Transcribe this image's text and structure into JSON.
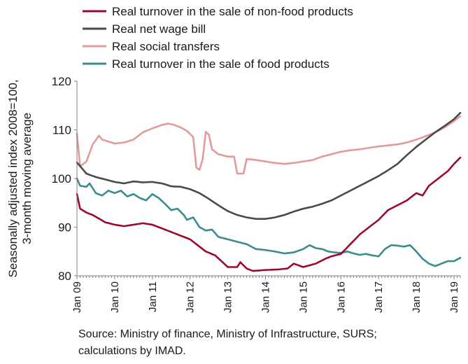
{
  "chart_data": {
    "type": "line",
    "ylabel_line1": "Seasonally adjusted index 2008=100,",
    "ylabel_line2": "3-month moving average",
    "ylim": [
      80,
      120
    ],
    "yticks": [
      "80",
      "90",
      "100",
      "110",
      "120"
    ],
    "x_tick_labels": [
      "Jan 09",
      "Jan 10",
      "Jan 11",
      "Jan 12",
      "Jan 13",
      "Jan 14",
      "Jan 15",
      "Jan 16",
      "Jan 17",
      "Jan 18",
      "Jan 19"
    ],
    "x_start": "Jan 09",
    "x_end": "Mar 19",
    "grid": false,
    "legend_position": "top",
    "series": [
      {
        "name": "Real turnover in the sale of non-food products",
        "color": "#9b0a2e",
        "knots": [
          [
            "Jan 09",
            96.8
          ],
          [
            "Feb 09",
            93.8
          ],
          [
            "Apr 09",
            93.0
          ],
          [
            "Jun 09",
            92.5
          ],
          [
            "Oct 09",
            91.0
          ],
          [
            "Jan 10",
            90.5
          ],
          [
            "Apr 10",
            90.2
          ],
          [
            "Oct 10",
            90.8
          ],
          [
            "Jan 11",
            90.5
          ],
          [
            "Jul 11",
            89.0
          ],
          [
            "Jan 12",
            87.5
          ],
          [
            "Jun 12",
            85.0
          ],
          [
            "Sep 12",
            84.2
          ],
          [
            "Nov 12",
            83.0
          ],
          [
            "Jan 13",
            81.8
          ],
          [
            "Apr 13",
            81.8
          ],
          [
            "May 13",
            82.8
          ],
          [
            "Jul 13",
            81.5
          ],
          [
            "Sep 13",
            81.0
          ],
          [
            "Jan 14",
            81.2
          ],
          [
            "May 14",
            81.3
          ],
          [
            "Aug 14",
            81.5
          ],
          [
            "Oct 14",
            82.5
          ],
          [
            "Jan 15",
            81.8
          ],
          [
            "May 15",
            82.5
          ],
          [
            "Aug 15",
            83.5
          ],
          [
            "Oct 15",
            84.0
          ],
          [
            "Jan 16",
            84.5
          ],
          [
            "Apr 16",
            86.5
          ],
          [
            "Jul 16",
            88.5
          ],
          [
            "Oct 16",
            90.0
          ],
          [
            "Jan 17",
            91.5
          ],
          [
            "Apr 17",
            93.5
          ],
          [
            "Jul 17",
            94.5
          ],
          [
            "Oct 17",
            95.5
          ],
          [
            "Jan 18",
            97.0
          ],
          [
            "Mar 18",
            96.5
          ],
          [
            "May 18",
            98.5
          ],
          [
            "Aug 18",
            100.0
          ],
          [
            "Nov 18",
            101.5
          ],
          [
            "Jan 19",
            103.0
          ],
          [
            "Mar 19",
            104.3
          ]
        ]
      },
      {
        "name": "Real net wage bill",
        "color": "#4a4a4a",
        "knots": [
          [
            "Jan 09",
            103.3
          ],
          [
            "Apr 09",
            101.0
          ],
          [
            "Jul 09",
            100.3
          ],
          [
            "Oct 09",
            99.8
          ],
          [
            "Jan 10",
            99.3
          ],
          [
            "Apr 10",
            99.0
          ],
          [
            "Jul 10",
            99.4
          ],
          [
            "Oct 10",
            99.2
          ],
          [
            "Jan 11",
            99.3
          ],
          [
            "Apr 11",
            99.0
          ],
          [
            "Jul 11",
            98.4
          ],
          [
            "Oct 11",
            98.3
          ],
          [
            "Jan 12",
            97.8
          ],
          [
            "Apr 12",
            97.0
          ],
          [
            "Jul 12",
            95.8
          ],
          [
            "Oct 12",
            94.5
          ],
          [
            "Jan 13",
            93.3
          ],
          [
            "Apr 13",
            92.5
          ],
          [
            "Jul 13",
            92.0
          ],
          [
            "Oct 13",
            91.7
          ],
          [
            "Jan 14",
            91.7
          ],
          [
            "Apr 14",
            92.0
          ],
          [
            "Jul 14",
            92.5
          ],
          [
            "Oct 14",
            93.2
          ],
          [
            "Jan 15",
            93.8
          ],
          [
            "Apr 15",
            94.2
          ],
          [
            "Jul 15",
            94.8
          ],
          [
            "Oct 15",
            95.5
          ],
          [
            "Jan 16",
            96.5
          ],
          [
            "Apr 16",
            97.5
          ],
          [
            "Jul 16",
            98.5
          ],
          [
            "Oct 16",
            99.5
          ],
          [
            "Jan 17",
            100.5
          ],
          [
            "Apr 17",
            101.7
          ],
          [
            "Jul 17",
            103.0
          ],
          [
            "Oct 17",
            104.8
          ],
          [
            "Jan 18",
            106.5
          ],
          [
            "Apr 18",
            108.0
          ],
          [
            "Jul 18",
            109.5
          ],
          [
            "Oct 18",
            110.8
          ],
          [
            "Jan 19",
            112.2
          ],
          [
            "Mar 19",
            113.5
          ]
        ]
      },
      {
        "name": "Real social transfers",
        "color": "#e39a9a",
        "knots": [
          [
            "Jan 09",
            109.2
          ],
          [
            "Feb 09",
            102.5
          ],
          [
            "Apr 09",
            103.5
          ],
          [
            "Jun 09",
            107.0
          ],
          [
            "Aug 09",
            108.8
          ],
          [
            "Sep 09",
            108.0
          ],
          [
            "Nov 09",
            107.6
          ],
          [
            "Jan 10",
            107.2
          ],
          [
            "Apr 10",
            107.4
          ],
          [
            "Jul 10",
            108.0
          ],
          [
            "Oct 10",
            109.5
          ],
          [
            "Jan 11",
            110.3
          ],
          [
            "Apr 11",
            111.0
          ],
          [
            "Jun 11",
            111.3
          ],
          [
            "Aug 11",
            111.0
          ],
          [
            "Oct 11",
            110.5
          ],
          [
            "Dec 11",
            109.8
          ],
          [
            "Feb 12",
            108.5
          ],
          [
            "Mar 12",
            102.2
          ],
          [
            "Apr 12",
            101.8
          ],
          [
            "May 12",
            104.0
          ],
          [
            "Jun 12",
            109.6
          ],
          [
            "Jul 12",
            109.0
          ],
          [
            "Aug 12",
            106.0
          ],
          [
            "Oct 12",
            105.0
          ],
          [
            "Jan 13",
            104.5
          ],
          [
            "Mar 13",
            104.5
          ],
          [
            "Apr 13",
            101.0
          ],
          [
            "Jun 13",
            101.0
          ],
          [
            "Jul 13",
            104.0
          ],
          [
            "Oct 13",
            103.8
          ],
          [
            "Jan 14",
            103.5
          ],
          [
            "Apr 14",
            103.2
          ],
          [
            "Jul 14",
            103.0
          ],
          [
            "Oct 14",
            103.2
          ],
          [
            "Jan 15",
            103.5
          ],
          [
            "Apr 15",
            103.8
          ],
          [
            "Jul 15",
            104.5
          ],
          [
            "Oct 15",
            105.0
          ],
          [
            "Jan 16",
            105.5
          ],
          [
            "Apr 16",
            105.8
          ],
          [
            "Jul 16",
            106.0
          ],
          [
            "Oct 16",
            106.3
          ],
          [
            "Jan 17",
            106.6
          ],
          [
            "Apr 17",
            106.8
          ],
          [
            "Jul 17",
            107.0
          ],
          [
            "Oct 17",
            107.4
          ],
          [
            "Jan 18",
            108.0
          ],
          [
            "Apr 18",
            108.7
          ],
          [
            "Jul 18",
            109.5
          ],
          [
            "Oct 18",
            110.5
          ],
          [
            "Jan 19",
            111.8
          ],
          [
            "Mar 19",
            112.8
          ]
        ]
      },
      {
        "name": "Real turnover in the sale of food products",
        "color": "#3a8c8e",
        "knots": [
          [
            "Jan 09",
            100.0
          ],
          [
            "Feb 09",
            98.5
          ],
          [
            "Apr 09",
            98.3
          ],
          [
            "May 09",
            99.0
          ],
          [
            "Jul 09",
            97.0
          ],
          [
            "Sep 09",
            96.5
          ],
          [
            "Nov 09",
            97.5
          ],
          [
            "Jan 10",
            97.0
          ],
          [
            "Mar 10",
            97.5
          ],
          [
            "May 10",
            96.3
          ],
          [
            "Jul 10",
            96.8
          ],
          [
            "Sep 10",
            96.0
          ],
          [
            "Nov 10",
            95.5
          ],
          [
            "Jan 11",
            96.8
          ],
          [
            "Mar 11",
            96.0
          ],
          [
            "May 11",
            94.8
          ],
          [
            "Jul 11",
            93.5
          ],
          [
            "Sep 11",
            93.8
          ],
          [
            "Nov 11",
            92.5
          ],
          [
            "Dec 11",
            91.5
          ],
          [
            "Feb 12",
            92.0
          ],
          [
            "Apr 12",
            90.0
          ],
          [
            "Jun 12",
            89.3
          ],
          [
            "Aug 12",
            89.5
          ],
          [
            "Oct 12",
            88.0
          ],
          [
            "Jan 13",
            87.5
          ],
          [
            "Apr 13",
            87.0
          ],
          [
            "Jul 13",
            86.5
          ],
          [
            "Oct 13",
            85.5
          ],
          [
            "Jan 14",
            85.3
          ],
          [
            "Apr 14",
            85.0
          ],
          [
            "Jul 14",
            84.6
          ],
          [
            "Oct 14",
            84.8
          ],
          [
            "Jan 15",
            85.5
          ],
          [
            "Mar 15",
            86.3
          ],
          [
            "May 15",
            85.7
          ],
          [
            "Jul 15",
            85.5
          ],
          [
            "Sep 15",
            85.0
          ],
          [
            "Nov 15",
            84.8
          ],
          [
            "Jan 16",
            84.7
          ],
          [
            "Mar 16",
            85.0
          ],
          [
            "May 16",
            84.6
          ],
          [
            "Jul 16",
            84.3
          ],
          [
            "Sep 16",
            84.5
          ],
          [
            "Nov 16",
            84.2
          ],
          [
            "Jan 17",
            84.0
          ],
          [
            "Mar 17",
            85.5
          ],
          [
            "May 17",
            86.3
          ],
          [
            "Jul 17",
            86.2
          ],
          [
            "Sep 17",
            86.0
          ],
          [
            "Nov 17",
            86.3
          ],
          [
            "Jan 18",
            85.0
          ],
          [
            "Mar 18",
            83.5
          ],
          [
            "May 18",
            82.5
          ],
          [
            "Jul 18",
            82.0
          ],
          [
            "Sep 18",
            82.5
          ],
          [
            "Nov 18",
            83.0
          ],
          [
            "Jan 19",
            83.0
          ],
          [
            "Mar 19",
            83.7
          ]
        ]
      }
    ]
  },
  "source": {
    "line1": "Source: Ministry of finance, Ministry of Infrastructure, SURS;",
    "line2": "calculations by IMAD."
  }
}
